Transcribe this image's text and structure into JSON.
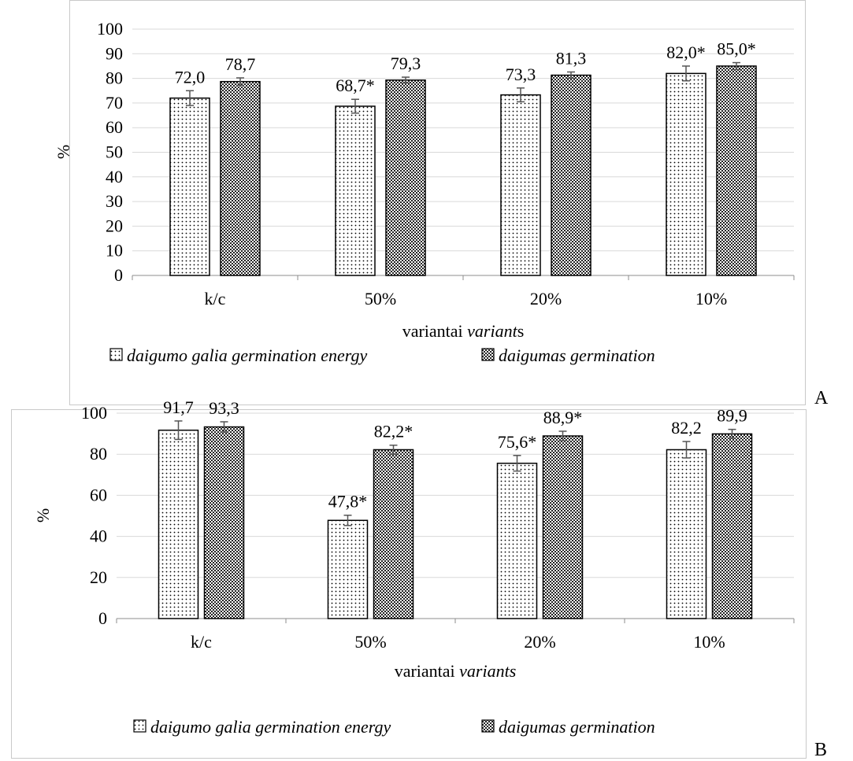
{
  "panels": [
    {
      "letter": "A",
      "chart_data": {
        "type": "bar",
        "categories": [
          "k/c",
          "50%",
          "20%",
          "10%"
        ],
        "series": [
          {
            "name": "daigumo galia germination energy",
            "values": [
              72.0,
              68.7,
              73.3,
              82.0
            ],
            "errors": [
              3.0,
              2.8,
              2.8,
              3.0
            ],
            "pattern": "dots"
          },
          {
            "name": "daigumas germination",
            "values": [
              78.7,
              79.3,
              81.3,
              85.0
            ],
            "errors": [
              1.5,
              1.2,
              1.3,
              1.4
            ],
            "pattern": "crosshatch"
          }
        ],
        "data_labels": [
          [
            "72,0",
            "68,7*",
            "73,3",
            "82,0*"
          ],
          [
            "78,7",
            "79,3",
            "81,3",
            "85,0*"
          ]
        ],
        "xlabel": "variantai ",
        "xlabel_italic": "variant",
        "xlabel_suffix": "s",
        "ylabel": "%",
        "ylim": [
          0,
          100
        ],
        "yticks": [
          0,
          10,
          20,
          30,
          40,
          50,
          60,
          70,
          80,
          90,
          100
        ],
        "grid": true,
        "legend_position": "bottom-left"
      }
    },
    {
      "letter": "B",
      "chart_data": {
        "type": "bar",
        "categories": [
          "k/c",
          "50%",
          "20%",
          "10%"
        ],
        "series": [
          {
            "name": "daigumo galia germination energy",
            "values": [
              91.7,
              47.8,
              75.6,
              82.2
            ],
            "errors": [
              4.5,
              2.5,
              3.8,
              4.0
            ],
            "pattern": "dots"
          },
          {
            "name": "daigumas germination",
            "values": [
              93.3,
              82.2,
              88.9,
              89.9
            ],
            "errors": [
              2.5,
              2.2,
              2.3,
              2.2
            ],
            "pattern": "crosshatch"
          }
        ],
        "data_labels": [
          [
            "91,7",
            "47,8*",
            "75,6*",
            "82,2"
          ],
          [
            "93,3",
            "82,2*",
            "88,9*",
            "89,9"
          ]
        ],
        "xlabel": "variantai ",
        "xlabel_italic": "variants",
        "xlabel_suffix": "",
        "ylabel": "%",
        "ylim": [
          0,
          100
        ],
        "yticks": [
          0,
          20,
          40,
          60,
          80,
          100
        ],
        "grid": true,
        "legend_position": "bottom-left"
      }
    }
  ]
}
